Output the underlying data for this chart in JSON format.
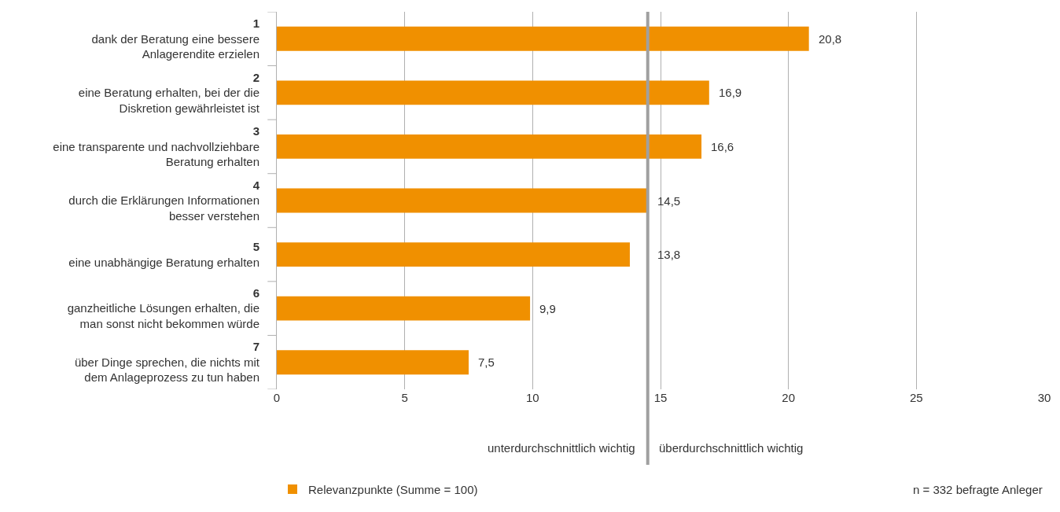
{
  "chart_data": {
    "type": "bar",
    "orientation": "horizontal",
    "categories": [
      "1\ndank der Beratung eine bessere\nAnlagerendite erzielen",
      "2\neine Beratung erhalten, bei der die\nDiskretion gewährleistet ist",
      "3\neine transparente und nachvollziehbare\nBeratung erhalten",
      "4\ndurch die Erklärungen Informationen\nbesser verstehen",
      "5\neine unabhängige Beratung erhalten",
      "6\nganzheitliche Lösungen erhalten, die\nman sonst nicht bekommen würde",
      "7\nüber Dinge sprechen, die nichts mit\ndem Anlageprozess zu tun haben"
    ],
    "series": [
      {
        "name": "Relevanzpunkte (Summe = 100)",
        "color": "#f09000",
        "values": [
          20.8,
          16.9,
          16.6,
          14.5,
          13.8,
          9.9,
          7.5
        ],
        "value_labels": [
          "20,8",
          "16,9",
          "16,6",
          "14,5",
          "13,8",
          "9,9",
          "7,5"
        ]
      }
    ],
    "xlim": [
      0,
      30
    ],
    "xticks": [
      0,
      5,
      10,
      15,
      20,
      25,
      30
    ],
    "grid": "x",
    "ref_lines": [
      {
        "axis": "x",
        "value": 14.5,
        "color": "#a0a0a0"
      }
    ],
    "annotations": [
      "unterdurchschnittlich wichtig",
      "überdurchschnittlich wichtig",
      "n = 332 befragte Anleger"
    ],
    "legend": "bottom left"
  }
}
